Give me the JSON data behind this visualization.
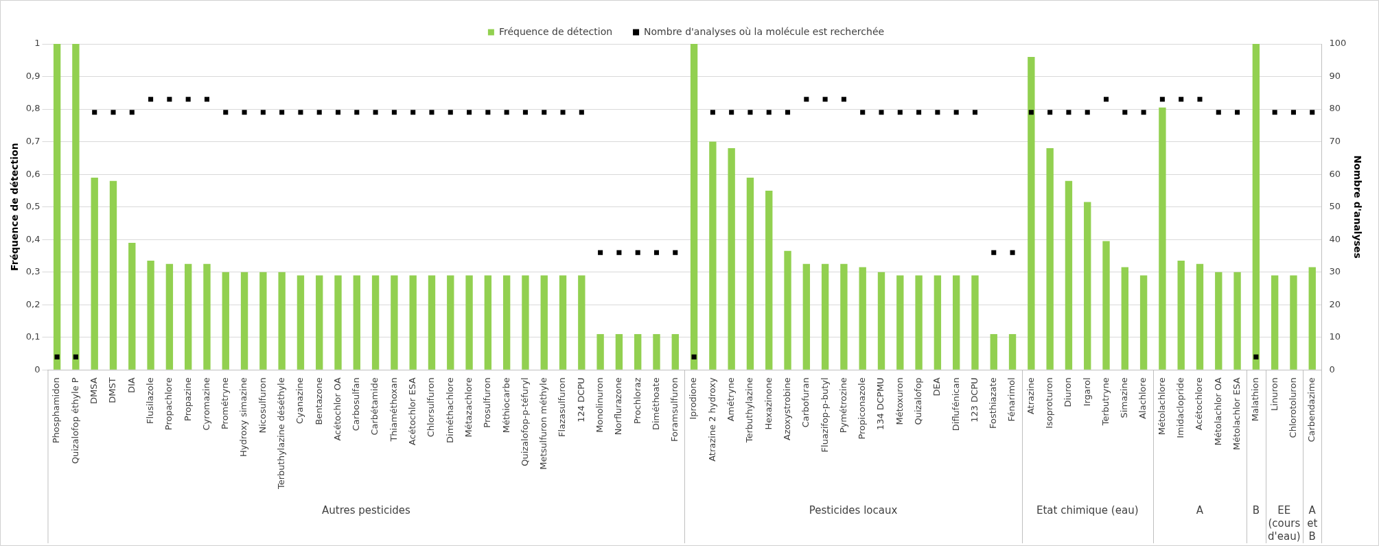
{
  "chart_data": {
    "type": "bar",
    "ylabel": "Fréquence de détection",
    "y2label": "Nombre d'analyses",
    "categories": [
      "Phosphamidon",
      "Quizalofop éthyle P",
      "DMSA",
      "DMST",
      "DIA",
      "Flusilazole",
      "Propachlore",
      "Propazine",
      "Cyromazine",
      "Prométryne",
      "Hydroxy simazine",
      "Nicosulfuron",
      "Terbuthylazine déséthyle",
      "Cyanazine",
      "Bentazone",
      "Acétochlor OA",
      "Carbosulfan",
      "Carbétamide",
      "Thiaméthoxan",
      "Acétochlor ESA",
      "Chlorsulfuron",
      "Diméthachlore",
      "Métazachlore",
      "Prosulfuron",
      "Méthiocarbe",
      "Quizalofop-p-téfuryl",
      "Metsulfuron méthyle",
      "Flazasulfuron",
      "124 DCPU",
      "Monolinuron",
      "Norflurazone",
      "Prochloraz",
      "Diméthoate",
      "Foramsulfuron",
      "Iprodione",
      "Atrazine 2 hydroxy",
      "Amétryne",
      "Terbuthylazine",
      "Hexazinone",
      "Azoxystrobine",
      "Carbofuran",
      "Fluazifop-p-butyl",
      "Pymétrozine",
      "Propiconazole",
      "134 DCPMU",
      "Métoxuron",
      "Quizalofop",
      "DEA",
      "Diflufénican",
      "123 DCPU",
      "Fosthiazate",
      "Fénarimol",
      "Atrazine",
      "Isoproturon",
      "Diuron",
      "Irgarol",
      "Terbutryne",
      "Simazine",
      "Alachlore",
      "Métolachlore",
      "Imidaclopride",
      "Acétochlore",
      "Métolachlor OA",
      "Métolachlor ESA",
      "Malathion",
      "Linuron",
      "Chlorotoluron",
      "Carbendazime"
    ],
    "series": [
      {
        "name": "Fréquence de détection",
        "type": "bar",
        "color": "#92d050",
        "values": [
          1,
          1,
          0.59,
          0.58,
          0.39,
          0.335,
          0.325,
          0.325,
          0.325,
          0.3,
          0.3,
          0.3,
          0.3,
          0.29,
          0.29,
          0.29,
          0.29,
          0.29,
          0.29,
          0.29,
          0.29,
          0.29,
          0.29,
          0.29,
          0.29,
          0.29,
          0.29,
          0.29,
          0.29,
          0.11,
          0.11,
          0.11,
          0.11,
          0.11,
          1,
          0.7,
          0.68,
          0.59,
          0.55,
          0.365,
          0.325,
          0.325,
          0.325,
          0.315,
          0.3,
          0.29,
          0.29,
          0.29,
          0.29,
          0.29,
          0.11,
          0.11,
          0.96,
          0.68,
          0.58,
          0.515,
          0.395,
          0.315,
          0.29,
          0.805,
          0.335,
          0.325,
          0.3,
          0.3,
          1,
          0.29,
          0.29,
          0.315
        ]
      },
      {
        "name": "Nombre d'analyses où la molécule est recherchée",
        "type": "scatter",
        "axis": "y2",
        "color": "#000000",
        "values": [
          4,
          4,
          79,
          79,
          79,
          83,
          83,
          83,
          83,
          79,
          79,
          79,
          79,
          79,
          79,
          79,
          79,
          79,
          79,
          79,
          79,
          79,
          79,
          79,
          79,
          79,
          79,
          79,
          79,
          36,
          36,
          36,
          36,
          36,
          4,
          79,
          79,
          79,
          79,
          79,
          83,
          83,
          83,
          79,
          79,
          79,
          79,
          79,
          79,
          79,
          36,
          36,
          79,
          79,
          79,
          79,
          83,
          79,
          79,
          83,
          83,
          83,
          79,
          79,
          4,
          79,
          79,
          79
        ]
      }
    ],
    "ylim": [
      0,
      1
    ],
    "yticks": [
      0,
      {
        "value": 0.1,
        "label": "0,1"
      },
      {
        "value": 0.2,
        "label": "0,2"
      },
      {
        "value": 0.3,
        "label": "0,3"
      },
      {
        "value": 0.4,
        "label": "0,4"
      },
      {
        "value": 0.5,
        "label": "0,5"
      },
      {
        "value": 0.6,
        "label": "0,6"
      },
      {
        "value": 0.7,
        "label": "0,7"
      },
      {
        "value": 0.8,
        "label": "0,8"
      },
      {
        "value": 0.9,
        "label": "0,9"
      },
      1
    ],
    "y2lim": [
      0,
      100
    ],
    "y2ticks": [
      0,
      10,
      20,
      30,
      40,
      50,
      60,
      70,
      80,
      90,
      100
    ],
    "grid": "y",
    "legend": "top",
    "marker": "square",
    "annotations": [
      "Autres pesticides",
      "Pesticides locaux",
      "Etat chimique (eau)",
      "A",
      "B",
      "EE (cours d'eau)",
      "A et B"
    ]
  }
}
